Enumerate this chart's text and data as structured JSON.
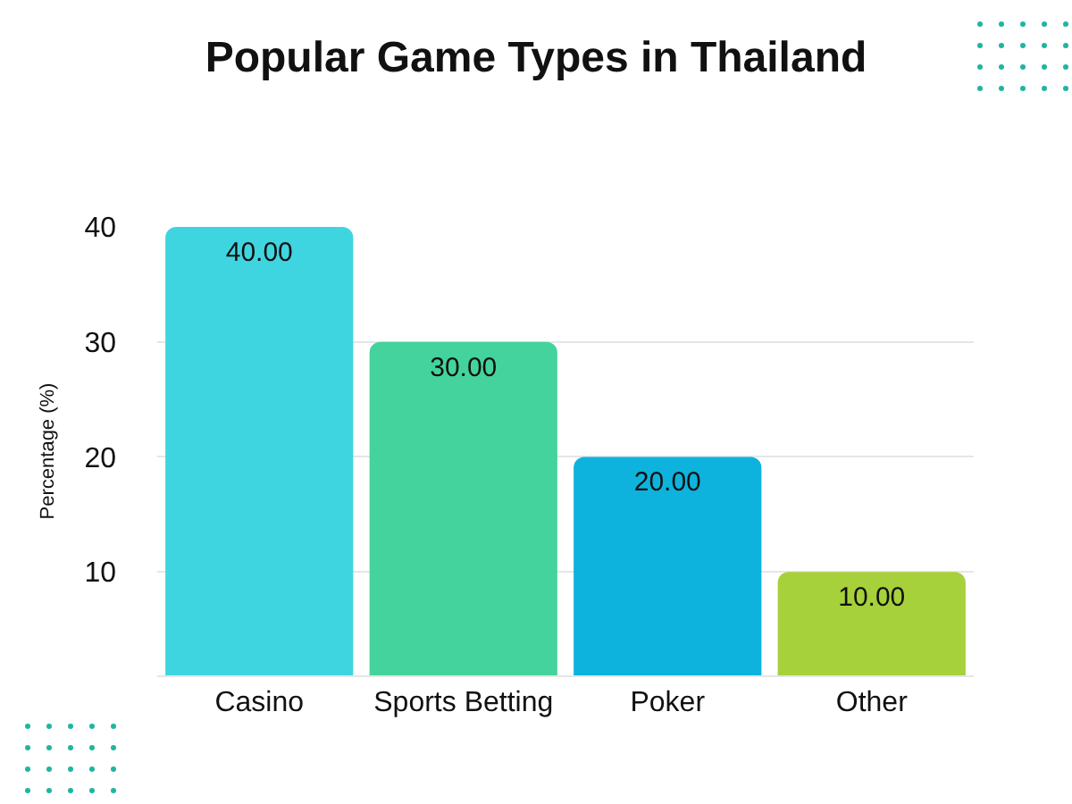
{
  "chart_data": {
    "type": "bar",
    "title": "Popular Game Types in Thailand",
    "ylabel": "Percentage (%)",
    "categories": [
      "Casino",
      "Sports Betting",
      "Poker",
      "Other"
    ],
    "values": [
      40,
      30,
      20,
      10
    ],
    "colors": [
      "#3fd5e0",
      "#44d39c",
      "#0db3dc",
      "#a6d13a"
    ],
    "value_labels": [
      "40.00",
      "30.00",
      "20.00",
      "10.00"
    ],
    "ylim": [
      1,
      40
    ],
    "yticks": [
      10,
      20,
      30,
      40
    ],
    "grid": "y"
  }
}
